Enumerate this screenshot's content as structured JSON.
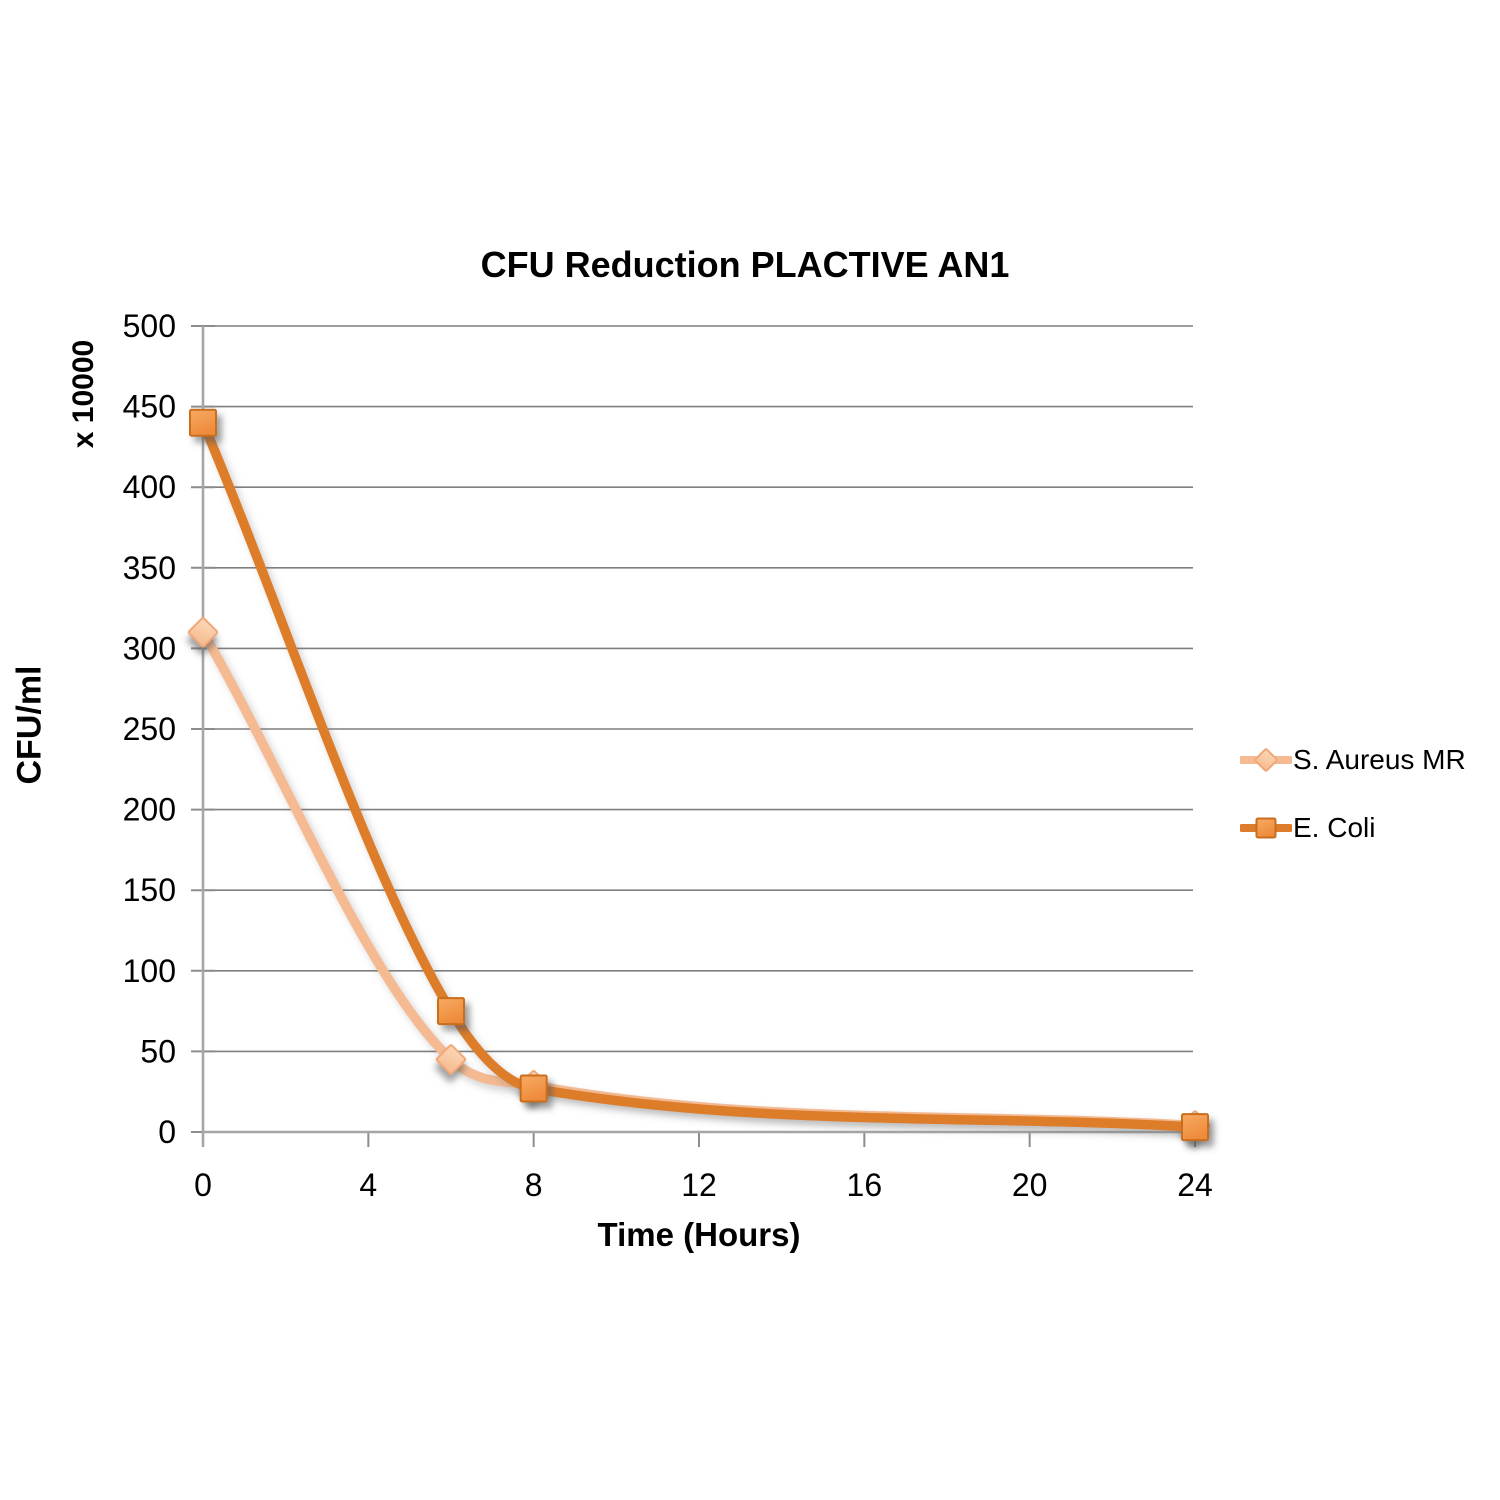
{
  "chart_data": {
    "type": "line",
    "title": "CFU Reduction PLACTIVE AN1",
    "xlabel": "Time (Hours)",
    "ylabel": "CFU/ml",
    "y_multiplier_label": "x 10000",
    "xlim": [
      0,
      24
    ],
    "ylim": [
      0,
      500
    ],
    "x_ticks": [
      0,
      4,
      8,
      12,
      16,
      20,
      24
    ],
    "y_ticks": [
      0,
      50,
      100,
      150,
      200,
      250,
      300,
      350,
      400,
      450,
      500
    ],
    "grid": "horizontal",
    "legend_position": "right",
    "smooth_lines": true,
    "colors": {
      "gridline": "#7F7F7F",
      "axis": "#A6A6A6",
      "tick": "#8C8C8C",
      "text": "#000000"
    },
    "series": [
      {
        "name": "S. Aureus MR",
        "marker": "diamond",
        "line_color": "#F5BA92",
        "marker_fill_light": "#FBD9BA",
        "marker_fill": "#F7BE93",
        "marker_border": "#F0A878",
        "x": [
          0,
          6,
          8,
          24
        ],
        "values": [
          310,
          45,
          29,
          4
        ]
      },
      {
        "name": "E. Coli",
        "marker": "square",
        "line_color": "#DD7D2C",
        "marker_fill_light": "#F7AA63",
        "marker_fill": "#EE8B3A",
        "marker_border": "#C86E1E",
        "x": [
          0,
          6,
          8,
          24
        ],
        "values": [
          440,
          75,
          27,
          3
        ]
      }
    ]
  }
}
